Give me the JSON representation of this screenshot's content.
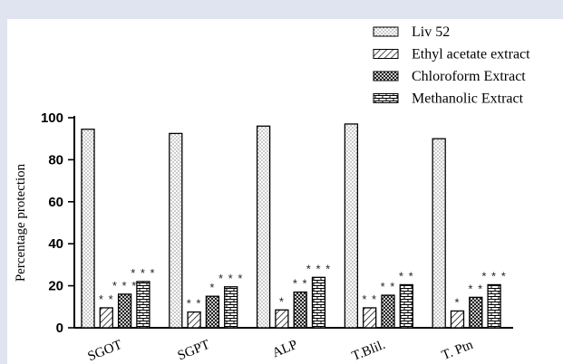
{
  "chart_data": {
    "type": "bar",
    "ylabel": "Percentage protection",
    "xlabel": "",
    "ylim": [
      0,
      100
    ],
    "yticks": [
      0,
      20,
      40,
      60,
      80,
      100
    ],
    "categories": [
      "SGOT",
      "SGPT",
      "ALP",
      "T.Blil.",
      "T. Ptn"
    ],
    "series": [
      {
        "name": "Liv 52",
        "pattern": "dots",
        "values": [
          94.5,
          92.5,
          96,
          97,
          90
        ],
        "sig": [
          "",
          "",
          "",
          "",
          ""
        ]
      },
      {
        "name": "Ethyl acetate extract",
        "pattern": "diagonal",
        "values": [
          9.5,
          7.5,
          8.5,
          9.5,
          8
        ],
        "sig": [
          "* *",
          "* *",
          "*",
          "* *",
          "*"
        ]
      },
      {
        "name": "Chloroform Extract",
        "pattern": "crosshatch",
        "values": [
          16,
          15,
          17,
          15.5,
          14.5
        ],
        "sig": [
          "* * *",
          "*",
          "* *",
          "* *",
          "* *"
        ]
      },
      {
        "name": "Methanolic Extract",
        "pattern": "brick",
        "values": [
          22,
          19.5,
          24,
          20.5,
          20.5
        ],
        "sig": [
          "* * *",
          "* * *",
          "* * *",
          "* *",
          "* * *"
        ]
      }
    ],
    "legend_position": "top-right"
  }
}
